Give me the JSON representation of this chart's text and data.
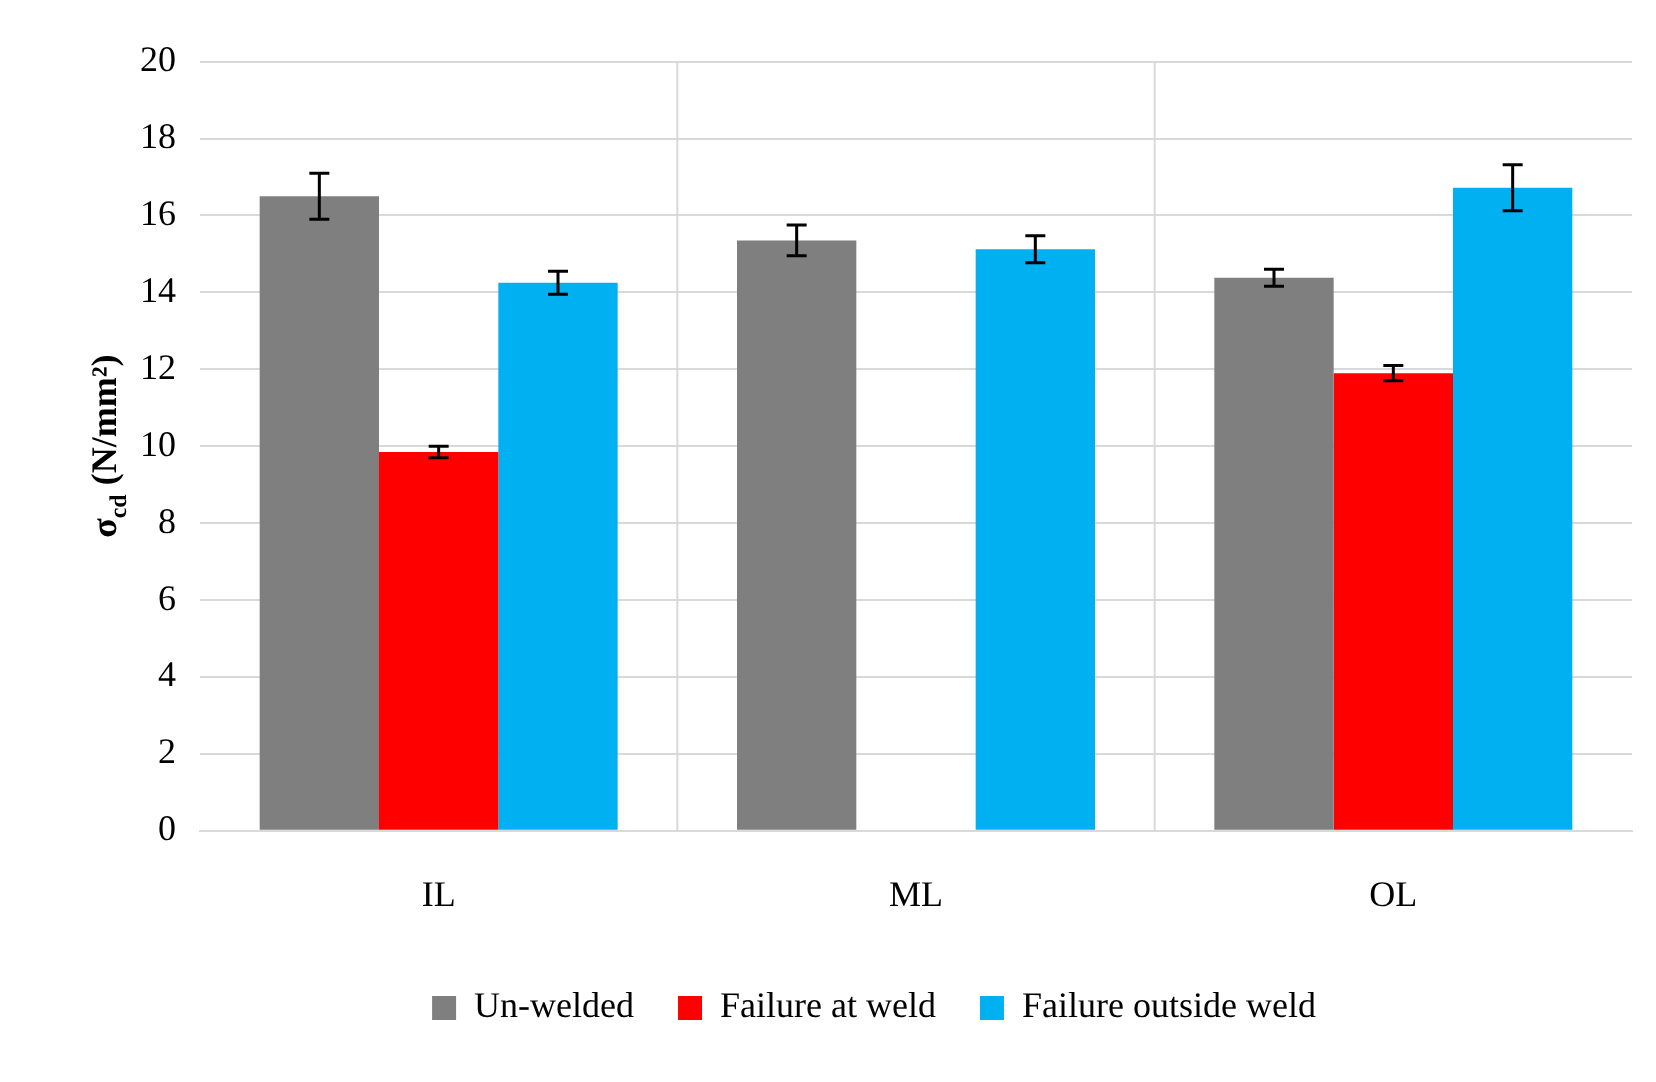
{
  "chart_data": {
    "type": "bar",
    "ylabel": "σ$_{cd}$ (N/mm²)",
    "categories": [
      "IL",
      "ML",
      "OL"
    ],
    "series": [
      {
        "name": "Un-welded",
        "color": "#7f7f7f",
        "values": [
          16.5,
          15.35,
          14.38
        ],
        "errors": [
          0.6,
          0.4,
          0.22
        ]
      },
      {
        "name": "Failure at weld",
        "color": "#ff0000",
        "values": [
          9.85,
          null,
          11.9
        ],
        "errors": [
          0.15,
          null,
          0.2
        ]
      },
      {
        "name": "Failure outside weld",
        "color": "#00b0f0",
        "values": [
          14.25,
          15.12,
          16.72
        ],
        "errors": [
          0.3,
          0.35,
          0.6
        ]
      }
    ],
    "ylim": [
      0,
      20
    ],
    "yticks": [
      0,
      2,
      4,
      6,
      8,
      10,
      12,
      14,
      16,
      18,
      20
    ],
    "grid": true,
    "legend": "bottom"
  }
}
